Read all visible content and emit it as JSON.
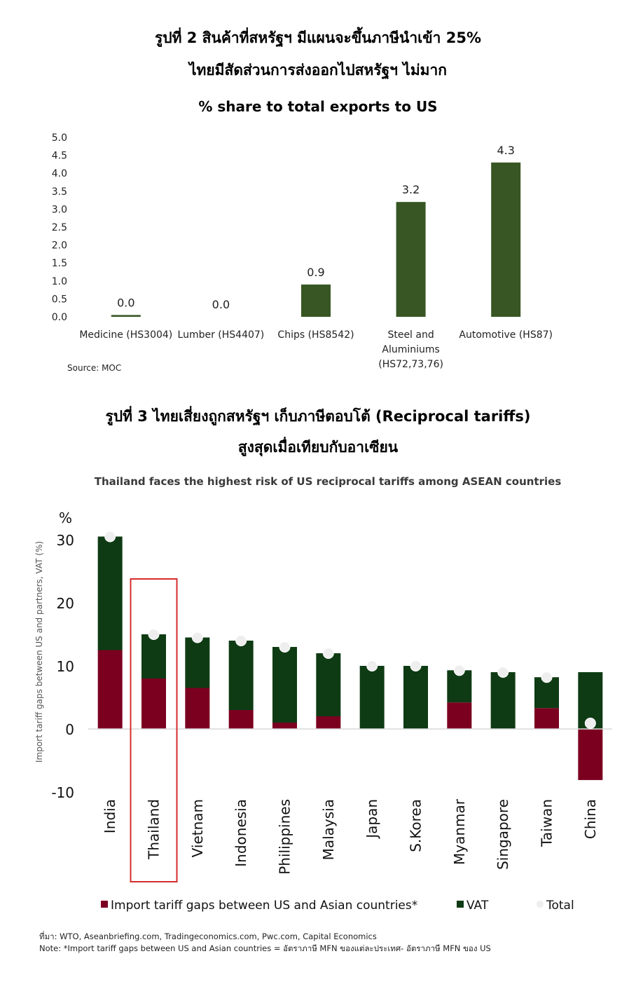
{
  "fig2": {
    "title_line1": "รูปที่ 2 สินค้าที่สหรัฐฯ มีแผนจะขึ้นภาษีนำเข้า 25%",
    "title_line2": "ไทยมีสัดส่วนการส่งออกไปสหรัฐฯ ไม่มาก",
    "source": "Source: MOC"
  },
  "fig3": {
    "title_line1": "รูปที่ 3 ไทยเสี่ยงถูกสหรัฐฯ เก็บภาษีตอบโต้ (Reciprocal tariffs)",
    "title_line2": "สูงสุดเมื่อเทียบกับอาเซียน",
    "source_line": "ที่มา: WTO, Aseanbriefing.com, Tradingeconomics.com, Pwc.com, Capital Economics",
    "note_line": "Note: *Import tariff gaps between US and Asian countries = อัตราภาษี MFN ของแต่ละประเทศ- อัตราภาษี MFN ของ US"
  },
  "chart_data": [
    {
      "type": "bar",
      "title": "% share to total exports to US",
      "categories": [
        "Medicine (HS3004)",
        "Lumber (HS4407)",
        "Chips (HS8542)",
        "Steel and Aluminiums (HS72,73,76)",
        "Automotive (HS87)"
      ],
      "category_lines": [
        [
          "Medicine (HS3004)"
        ],
        [
          "Lumber (HS4407)"
        ],
        [
          "Chips (HS8542)"
        ],
        [
          "Steel and",
          "Aluminiums",
          "(HS72,73,76)"
        ],
        [
          "Automotive (HS87)"
        ]
      ],
      "values": [
        0.05,
        0.0,
        0.9,
        3.2,
        4.3
      ],
      "data_labels": [
        "0.0",
        "0.0",
        "0.9",
        "3.2",
        "4.3"
      ],
      "yticks": [
        "0.0",
        "0.5",
        "1.0",
        "1.5",
        "2.0",
        "2.5",
        "3.0",
        "3.5",
        "4.0",
        "4.5",
        "5.0"
      ],
      "ylim": [
        0,
        5
      ],
      "color": "#375623",
      "grid": false
    },
    {
      "type": "bar",
      "stacked": true,
      "title": "Thailand faces the highest risk of US reciprocal tariffs among ASEAN countries",
      "ylabel": "Import tariff gaps between US and partners, VAT (%)",
      "unit_label": "%",
      "categories": [
        "India",
        "Thailand",
        "Vietnam",
        "Indonesia",
        "Philippines",
        "Malaysia",
        "Japan",
        "S.Korea",
        "Myanmar",
        "Singapore",
        "Taiwan",
        "China"
      ],
      "highlight_category": "Thailand",
      "series": [
        {
          "name": "Import tariff gaps between US and Asian countries*",
          "color": "#7b0020",
          "values": [
            12.5,
            8.0,
            6.5,
            3.0,
            1.0,
            2.0,
            0.0,
            0.0,
            4.2,
            0.0,
            3.3,
            -8.1
          ]
        },
        {
          "name": "VAT",
          "color": "#0e3b14",
          "values": [
            18.0,
            7.0,
            8.0,
            11.0,
            12.0,
            10.0,
            10.0,
            10.0,
            5.1,
            9.0,
            4.9,
            9.0
          ]
        },
        {
          "name": "Total",
          "color": "#eeeeee",
          "type": "scatter",
          "values": [
            30.5,
            15.0,
            14.5,
            14.0,
            13.0,
            12.0,
            10.0,
            10.0,
            9.3,
            9.0,
            8.2,
            0.9
          ]
        }
      ],
      "yticks": [
        "-10",
        "0",
        "10",
        "20",
        "30"
      ],
      "ylim": [
        -10,
        30
      ],
      "legend_position": "bottom"
    }
  ]
}
